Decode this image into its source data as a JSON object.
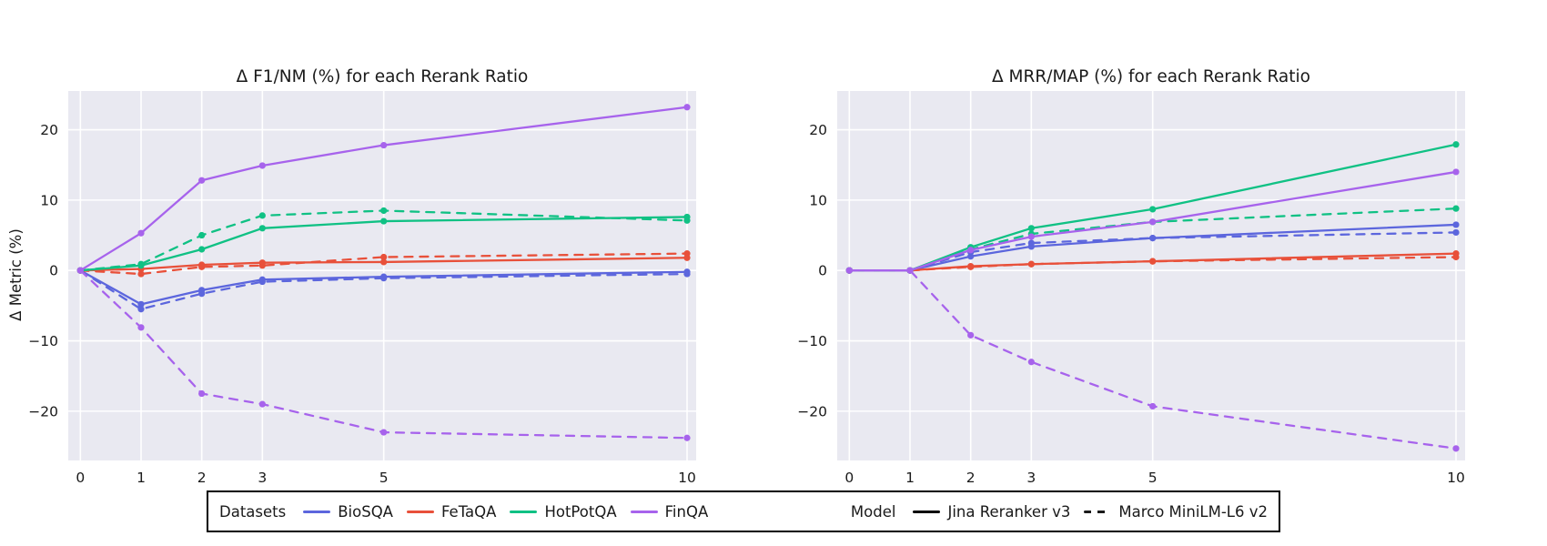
{
  "figure": {
    "background": "#ffffff",
    "plot_background": "#e9e9f1",
    "grid_color": "#ffffff",
    "text_color": "#1a1a1a"
  },
  "ylabel": "Δ Metric (%)",
  "legend": {
    "datasets_label": "Datasets",
    "datasets": [
      {
        "label": "BioSQA",
        "color": "#5c66dd"
      },
      {
        "label": "FeTaQA",
        "color": "#e8503a"
      },
      {
        "label": "HotPotQA",
        "color": "#10c184"
      },
      {
        "label": "FinQA",
        "color": "#a763ec"
      }
    ],
    "model_label": "Model",
    "models": [
      {
        "label": "Jina Reranker v3",
        "style": "solid"
      },
      {
        "label": "Marco MiniLM-L6 v2",
        "style": "dashed"
      }
    ]
  },
  "chart_data": [
    {
      "type": "line",
      "title": "Δ F1/NM (%) for each Rerank Ratio",
      "xlabel": "",
      "ylabel": "Δ Metric (%)",
      "x": [
        0,
        1,
        2,
        3,
        5,
        10
      ],
      "xticks": [
        0,
        1,
        2,
        3,
        5,
        10
      ],
      "yticks": [
        -20,
        -10,
        0,
        10,
        20
      ],
      "xlim": [
        -0.2,
        10.15
      ],
      "ylim": [
        -27,
        25.5
      ],
      "grid": true,
      "series": [
        {
          "dataset": "BioSQA",
          "model": "Jina Reranker v3",
          "style": "solid",
          "color": "#5c66dd",
          "values": [
            0,
            -4.8,
            -2.8,
            -1.3,
            -0.9,
            -0.2
          ]
        },
        {
          "dataset": "BioSQA",
          "model": "Marco MiniLM-L6 v2",
          "style": "dashed",
          "color": "#5c66dd",
          "values": [
            0,
            -5.5,
            -3.3,
            -1.6,
            -1.1,
            -0.5
          ]
        },
        {
          "dataset": "FeTaQA",
          "model": "Jina Reranker v3",
          "style": "solid",
          "color": "#e8503a",
          "values": [
            0,
            0.2,
            0.8,
            1.1,
            1.2,
            1.8
          ]
        },
        {
          "dataset": "FeTaQA",
          "model": "Marco MiniLM-L6 v2",
          "style": "dashed",
          "color": "#e8503a",
          "values": [
            0,
            -0.5,
            0.5,
            0.7,
            1.9,
            2.4
          ]
        },
        {
          "dataset": "HotPotQA",
          "model": "Jina Reranker v3",
          "style": "solid",
          "color": "#10c184",
          "values": [
            0,
            0.7,
            3.0,
            6.0,
            7.0,
            7.6
          ]
        },
        {
          "dataset": "HotPotQA",
          "model": "Marco MiniLM-L6 v2",
          "style": "dashed",
          "color": "#10c184",
          "values": [
            0,
            0.9,
            5.0,
            7.8,
            8.5,
            7.1
          ]
        },
        {
          "dataset": "FinQA",
          "model": "Jina Reranker v3",
          "style": "solid",
          "color": "#a763ec",
          "values": [
            0,
            5.3,
            12.8,
            14.9,
            17.8,
            23.2
          ]
        },
        {
          "dataset": "FinQA",
          "model": "Marco MiniLM-L6 v2",
          "style": "dashed",
          "color": "#a763ec",
          "values": [
            0,
            -8.1,
            -17.5,
            -19.0,
            -23.0,
            -23.8
          ]
        }
      ]
    },
    {
      "type": "line",
      "title": "Δ MRR/MAP (%) for each Rerank Ratio",
      "xlabel": "",
      "ylabel": "",
      "x": [
        0,
        1,
        2,
        3,
        5,
        10
      ],
      "xticks": [
        0,
        1,
        2,
        3,
        5,
        10
      ],
      "yticks": [
        -20,
        -10,
        0,
        10,
        20
      ],
      "xlim": [
        -0.2,
        10.15
      ],
      "ylim": [
        -27,
        25.5
      ],
      "grid": true,
      "series": [
        {
          "dataset": "BioSQA",
          "model": "Jina Reranker v3",
          "style": "solid",
          "color": "#5c66dd",
          "values": [
            0,
            0,
            2.0,
            3.4,
            4.6,
            6.5
          ]
        },
        {
          "dataset": "BioSQA",
          "model": "Marco MiniLM-L6 v2",
          "style": "dashed",
          "color": "#5c66dd",
          "values": [
            0,
            0,
            2.6,
            3.9,
            4.6,
            5.4
          ]
        },
        {
          "dataset": "FeTaQA",
          "model": "Jina Reranker v3",
          "style": "solid",
          "color": "#e8503a",
          "values": [
            0,
            0,
            0.6,
            0.9,
            1.3,
            2.4
          ]
        },
        {
          "dataset": "FeTaQA",
          "model": "Marco MiniLM-L6 v2",
          "style": "dashed",
          "color": "#e8503a",
          "values": [
            0,
            0,
            0.5,
            0.9,
            1.3,
            1.9
          ]
        },
        {
          "dataset": "HotPotQA",
          "model": "Jina Reranker v3",
          "style": "solid",
          "color": "#10c184",
          "values": [
            0,
            0,
            3.3,
            6.0,
            8.7,
            17.9
          ]
        },
        {
          "dataset": "HotPotQA",
          "model": "Marco MiniLM-L6 v2",
          "style": "dashed",
          "color": "#10c184",
          "values": [
            0,
            0,
            3.0,
            5.2,
            6.9,
            8.8
          ]
        },
        {
          "dataset": "FinQA",
          "model": "Jina Reranker v3",
          "style": "solid",
          "color": "#a763ec",
          "values": [
            0,
            0,
            2.9,
            4.8,
            6.9,
            14.0
          ]
        },
        {
          "dataset": "FinQA",
          "model": "Marco MiniLM-L6 v2",
          "style": "dashed",
          "color": "#a763ec",
          "values": [
            0,
            0,
            -9.2,
            -13.0,
            -19.3,
            -25.3
          ]
        }
      ]
    }
  ]
}
